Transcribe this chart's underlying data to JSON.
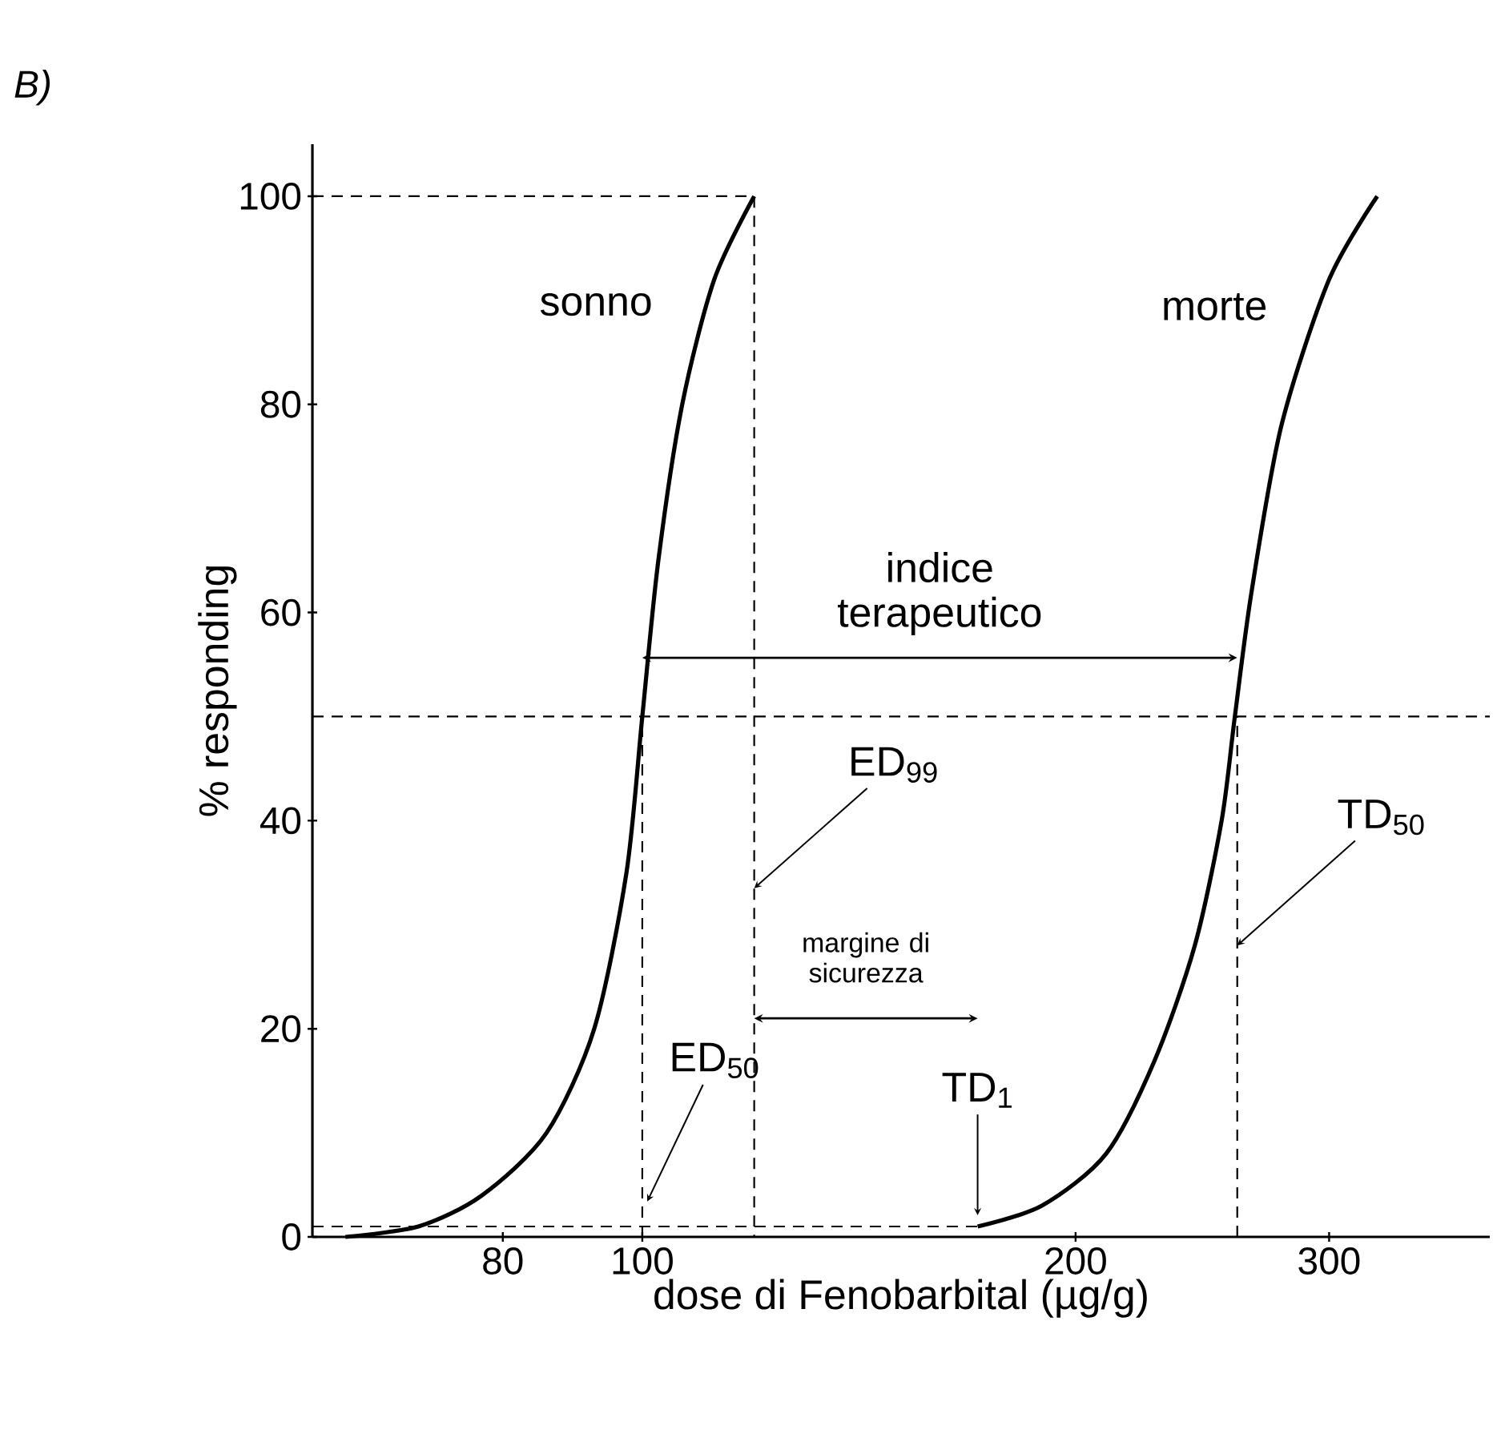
{
  "chart_data": {
    "type": "line",
    "title": "B)",
    "xlabel": "dose di Fenobarbital (µg/g)",
    "ylabel": "% responding",
    "log": "x",
    "xlim": [
      59,
      388
    ],
    "xticks": [
      80,
      100,
      200,
      300
    ],
    "ylim": [
      0,
      105
    ],
    "yticks": [
      0,
      20,
      40,
      60,
      80,
      100
    ],
    "series": [
      {
        "name": "sonno",
        "color": "#000000",
        "line_style": "solid",
        "x": [
          62.2,
          69.9,
          77.4,
          85.8,
          92.6,
          97.5,
          100,
          102.6,
          106.6,
          112.2,
          119.6
        ],
        "values": [
          0,
          1,
          4,
          10,
          20,
          35,
          50,
          65,
          80,
          92,
          100
        ]
      },
      {
        "name": "morte",
        "color": "#000000",
        "line_style": "solid",
        "x": [
          171,
          189.5,
          210,
          227,
          242,
          252.6,
          258,
          265,
          278,
          300,
          324
        ],
        "values": [
          1,
          3,
          8,
          17,
          28,
          40,
          50,
          62,
          78,
          92,
          100
        ]
      },
      {
        "color": "#000000",
        "line_style": "dashed",
        "x": [
          59,
          119.6,
          119.6
        ],
        "values": [
          100,
          100,
          0
        ]
      },
      {
        "color": "#000000",
        "line_style": "dashed",
        "x": [
          100,
          100
        ],
        "values": [
          0,
          50
        ]
      },
      {
        "color": "#000000",
        "line_style": "dashed",
        "x": [
          259,
          259
        ],
        "values": [
          0,
          50
        ]
      },
      {
        "color": "#000000",
        "line_style": "dashed",
        "x": [
          59,
          171
        ],
        "values": [
          1,
          1
        ]
      }
    ],
    "ref_lines": [
      {
        "axis": "y",
        "value": 50,
        "line_style": "dashed",
        "color": "#000000"
      }
    ],
    "annotations": [
      "indice terapeutico",
      "margine di sicurezza",
      {
        "text": "ED$_{99}$",
        "x": 119.6,
        "y": 33.5
      },
      {
        "text": "ED$_{50}$",
        "x": 100.8,
        "y": 3.4
      },
      {
        "text": "TD$_{1}$",
        "x": 171,
        "y": 1
      },
      {
        "text": "TD$_{50}$",
        "x": 259,
        "y": 28
      }
    ]
  }
}
